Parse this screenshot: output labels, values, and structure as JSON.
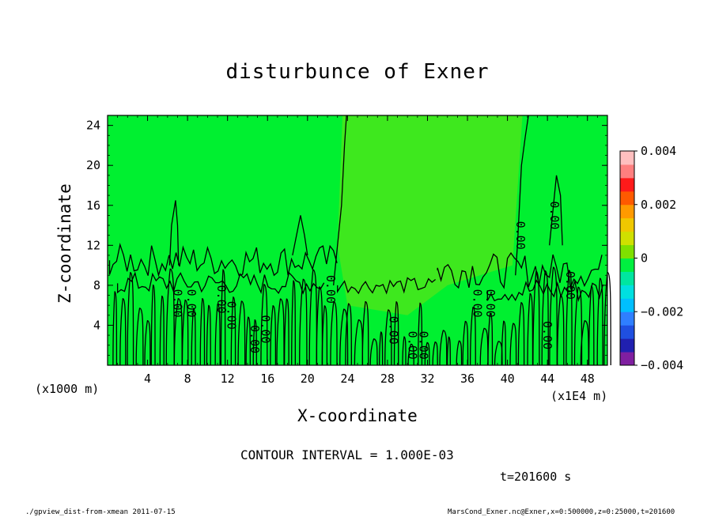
{
  "chart_data": {
    "type": "heatmap",
    "title": "disturbunce of Exner",
    "xlabel": "X-coordinate",
    "ylabel": "Z-coordinate",
    "x_unit_label": "(x1000 m)",
    "x_unit_label2": "(x1E4 m)",
    "xlim": [
      0,
      50
    ],
    "ylim": [
      0,
      25
    ],
    "xticks": [
      "4",
      "8",
      "12",
      "16",
      "20",
      "24",
      "28",
      "32",
      "36",
      "40",
      "44",
      "48"
    ],
    "yticks": [
      "4",
      "8",
      "12",
      "16",
      "20",
      "24"
    ],
    "colorbar": {
      "range": [
        -0.004,
        0.004
      ],
      "tick_labels": [
        "0.004",
        "0.002",
        "0",
        "−0.002",
        "−0.004"
      ],
      "colors": [
        "#7f1fa0",
        "#2020b0",
        "#1f4fe0",
        "#2f7fff",
        "#00bfff",
        "#00e0e0",
        "#00e6a0",
        "#00f040",
        "#7fe000",
        "#d0e000",
        "#f0c800",
        "#ff9a00",
        "#ff5a00",
        "#ff1a1a",
        "#ff7f7f",
        "#ffbfbf"
      ]
    },
    "contour_labels": [
      "0.00",
      "0.00",
      "0.00",
      "0.00",
      "0.00",
      "0.00",
      "0.00",
      "0.00",
      "0.00",
      "0.00",
      "0.00",
      "0.00",
      "0.00",
      "0.00",
      "0.00",
      "0.00"
    ],
    "colors": {
      "background": "#00f030",
      "region": "#3ee81e",
      "contour": "#000000"
    }
  },
  "annotations": {
    "contour_interval": "CONTOUR INTERVAL = 1.000E-03",
    "time": "t=201600 s",
    "footer_left": "./gpview_dist-from-xmean  2011-07-15",
    "footer_right": "MarsCond_Exner.nc@Exner,x=0:500000,z=0:25000,t=201600"
  }
}
